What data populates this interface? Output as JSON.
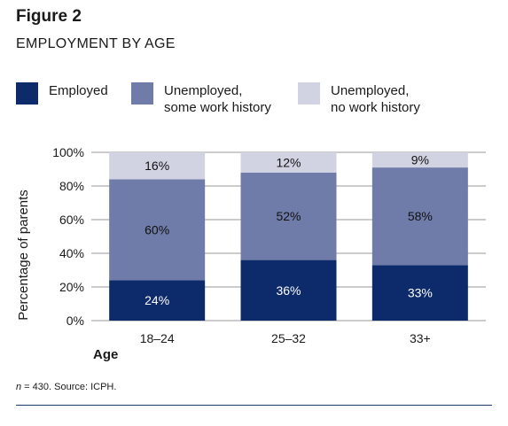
{
  "header": {
    "figure_label": "Figure 2",
    "title": "EMPLOYMENT BY AGE"
  },
  "legend": [
    {
      "label": "Employed",
      "color": "#0d2a6b"
    },
    {
      "label": "Unemployed,\nsome work history",
      "color": "#6f7ba8"
    },
    {
      "label": "Unemployed,\nno work history",
      "color": "#d1d3e3"
    }
  ],
  "chart_data": {
    "type": "bar",
    "stacked": true,
    "categories": [
      "18–24",
      "25–32",
      "33+"
    ],
    "series": [
      {
        "name": "Employed",
        "values": [
          24,
          36,
          33
        ],
        "labels": [
          "24%",
          "36%",
          "33%"
        ],
        "color": "#0d2a6b",
        "label_color": "#ffffff"
      },
      {
        "name": "Unemployed, some work history",
        "values": [
          60,
          52,
          58
        ],
        "labels": [
          "60%",
          "52%",
          "58%"
        ],
        "color": "#6f7ba8",
        "label_color": "#111111"
      },
      {
        "name": "Unemployed, no work history",
        "values": [
          16,
          12,
          9
        ],
        "labels": [
          "16%",
          "12%",
          "9%"
        ],
        "color": "#d1d3e3",
        "label_color": "#111111"
      }
    ],
    "xlabel": "Age",
    "ylabel": "Percentage of parents",
    "ylim": [
      0,
      100
    ],
    "yticks": [
      0,
      20,
      40,
      60,
      80,
      100
    ],
    "ytick_labels": [
      "0%",
      "20%",
      "40%",
      "60%",
      "80%",
      "100%"
    ],
    "grid": true,
    "legend_position": "top"
  },
  "footnote": {
    "n_label": "n",
    "text": " = 430. Source: ICPH."
  }
}
